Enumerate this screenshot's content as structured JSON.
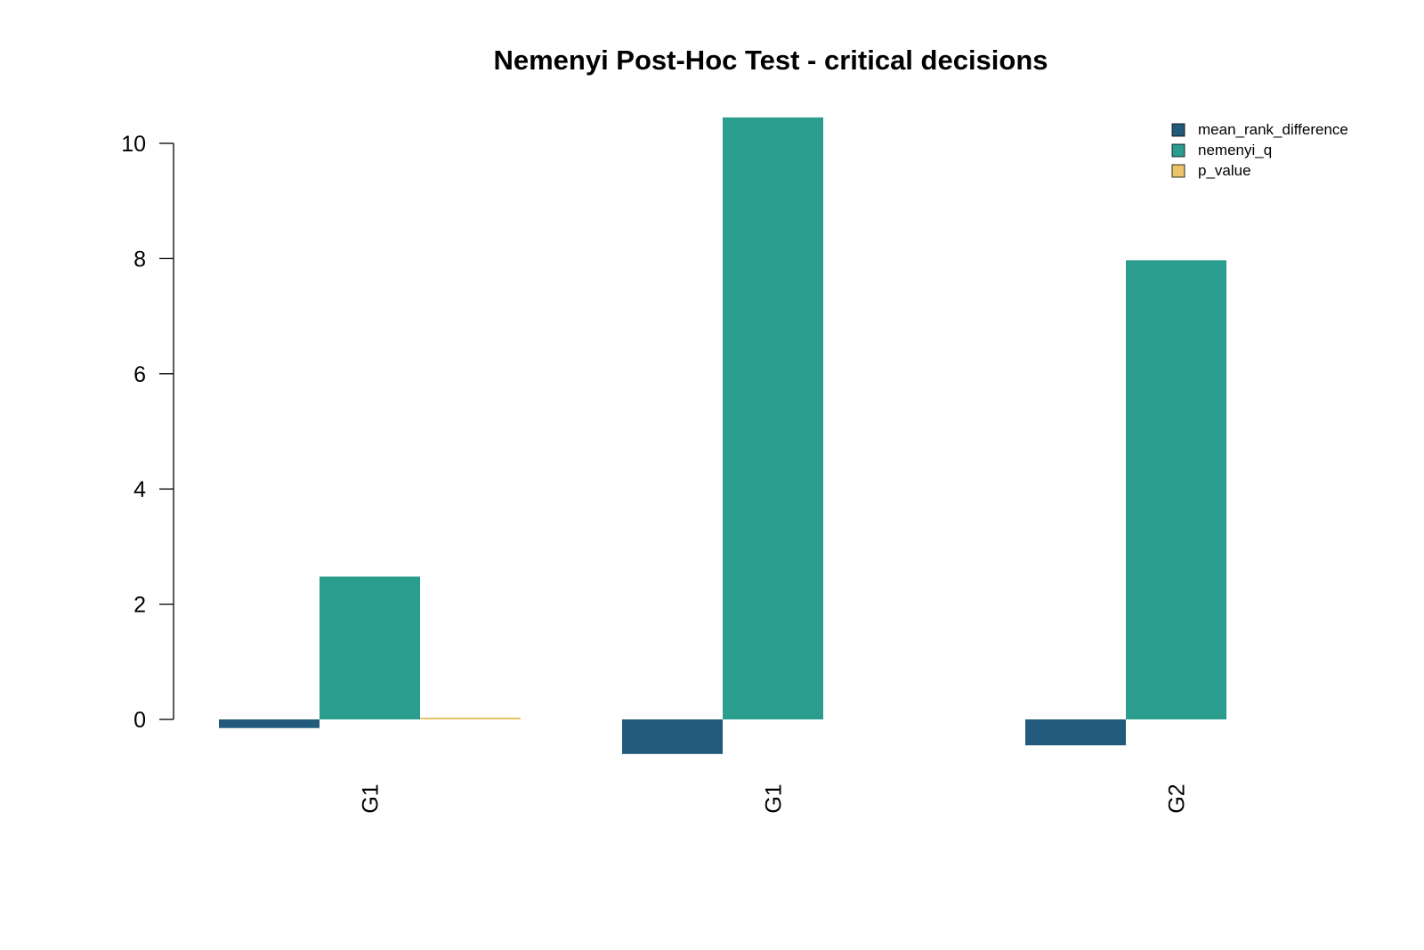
{
  "chart_data": {
    "type": "bar",
    "title": "Nemenyi Post-Hoc Test - critical decisions",
    "xlabel": "",
    "ylabel": "",
    "categories": [
      "G1",
      "G1",
      "G2"
    ],
    "series": [
      {
        "name": "mean_rank_difference",
        "color": "#215A7A",
        "values": [
          -0.15,
          -0.6,
          -0.45
        ]
      },
      {
        "name": "nemenyi_q",
        "color": "#2A9D8E",
        "values": [
          2.48,
          10.45,
          7.97
        ]
      },
      {
        "name": "p_value",
        "color": "#E9C46A",
        "values": [
          0.03,
          0.0,
          0.0
        ]
      }
    ],
    "ylim": [
      -0.75,
      10.6
    ],
    "yticks": [
      "0",
      "2",
      "4",
      "6",
      "8",
      "10"
    ],
    "grid": false,
    "legend": "top-right",
    "x_tick_orientation": "vertical"
  }
}
